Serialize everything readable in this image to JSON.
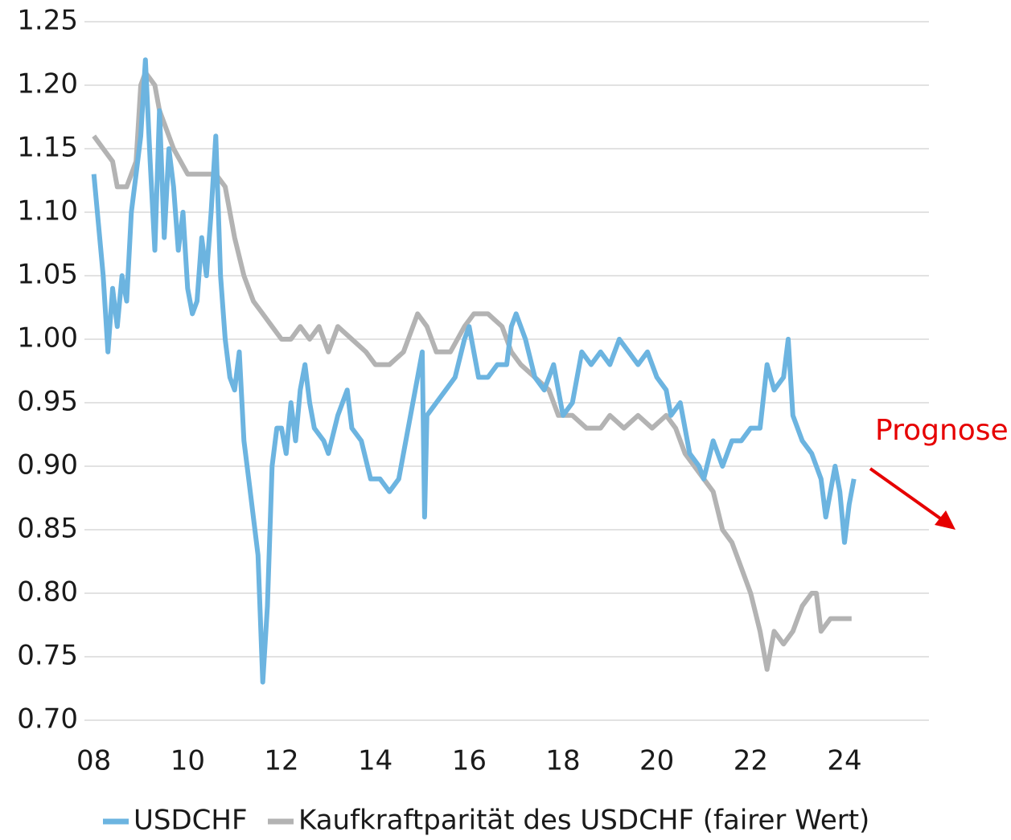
{
  "chart_data": {
    "type": "line",
    "xlim": [
      2007.8,
      2025.8
    ],
    "xticks": [
      {
        "value": 2008,
        "label": "08"
      },
      {
        "value": 2010,
        "label": "10"
      },
      {
        "value": 2012,
        "label": "12"
      },
      {
        "value": 2014,
        "label": "14"
      },
      {
        "value": 2016,
        "label": "16"
      },
      {
        "value": 2018,
        "label": "18"
      },
      {
        "value": 2020,
        "label": "20"
      },
      {
        "value": 2022,
        "label": "22"
      },
      {
        "value": 2024,
        "label": "24"
      }
    ],
    "ylim": [
      0.7,
      1.25
    ],
    "yticks": [
      {
        "value": 0.7,
        "label": "0.70"
      },
      {
        "value": 0.75,
        "label": "0.75"
      },
      {
        "value": 0.8,
        "label": "0.80"
      },
      {
        "value": 0.85,
        "label": "0.85"
      },
      {
        "value": 0.9,
        "label": "0.90"
      },
      {
        "value": 0.95,
        "label": "0.95"
      },
      {
        "value": 1.0,
        "label": "1.00"
      },
      {
        "value": 1.05,
        "label": "1.05"
      },
      {
        "value": 1.1,
        "label": "1.10"
      },
      {
        "value": 1.15,
        "label": "1.15"
      },
      {
        "value": 1.2,
        "label": "1.20"
      },
      {
        "value": 1.25,
        "label": "1.25"
      }
    ],
    "grid": true,
    "legend": "bottom",
    "annotation": "Prognose",
    "annotation_color": "#e60000",
    "series": [
      {
        "name": "USDCHF",
        "color": "#6cb4e0",
        "x": [
          2008.0,
          2008.1,
          2008.2,
          2008.3,
          2008.4,
          2008.5,
          2008.6,
          2008.7,
          2008.8,
          2008.9,
          2009.0,
          2009.1,
          2009.2,
          2009.3,
          2009.4,
          2009.5,
          2009.6,
          2009.7,
          2009.8,
          2009.9,
          2010.0,
          2010.1,
          2010.2,
          2010.3,
          2010.4,
          2010.5,
          2010.6,
          2010.7,
          2010.8,
          2010.9,
          2011.0,
          2011.1,
          2011.2,
          2011.3,
          2011.4,
          2011.5,
          2011.6,
          2011.7,
          2011.8,
          2011.9,
          2012.0,
          2012.1,
          2012.2,
          2012.3,
          2012.4,
          2012.5,
          2012.6,
          2012.7,
          2012.9,
          2013.0,
          2013.2,
          2013.4,
          2013.5,
          2013.7,
          2013.9,
          2014.1,
          2014.3,
          2014.5,
          2014.7,
          2014.9,
          2015.0,
          2015.05,
          2015.1,
          2015.3,
          2015.5,
          2015.7,
          2015.9,
          2016.0,
          2016.2,
          2016.4,
          2016.6,
          2016.8,
          2016.9,
          2017.0,
          2017.2,
          2017.4,
          2017.6,
          2017.8,
          2018.0,
          2018.2,
          2018.4,
          2018.6,
          2018.8,
          2019.0,
          2019.2,
          2019.4,
          2019.6,
          2019.8,
          2020.0,
          2020.2,
          2020.3,
          2020.5,
          2020.7,
          2020.9,
          2021.0,
          2021.2,
          2021.4,
          2021.6,
          2021.8,
          2022.0,
          2022.2,
          2022.35,
          2022.5,
          2022.7,
          2022.8,
          2022.9,
          2023.1,
          2023.3,
          2023.5,
          2023.6,
          2023.8,
          2023.9,
          2024.0,
          2024.1,
          2024.2
        ],
        "values": [
          1.13,
          1.09,
          1.05,
          0.99,
          1.04,
          1.01,
          1.05,
          1.03,
          1.1,
          1.13,
          1.16,
          1.22,
          1.14,
          1.07,
          1.18,
          1.08,
          1.15,
          1.12,
          1.07,
          1.1,
          1.04,
          1.02,
          1.03,
          1.08,
          1.05,
          1.1,
          1.16,
          1.05,
          1.0,
          0.97,
          0.96,
          0.99,
          0.92,
          0.89,
          0.86,
          0.83,
          0.73,
          0.79,
          0.9,
          0.93,
          0.93,
          0.91,
          0.95,
          0.92,
          0.96,
          0.98,
          0.95,
          0.93,
          0.92,
          0.91,
          0.94,
          0.96,
          0.93,
          0.92,
          0.89,
          0.89,
          0.88,
          0.89,
          0.93,
          0.97,
          0.99,
          0.86,
          0.94,
          0.95,
          0.96,
          0.97,
          1.0,
          1.01,
          0.97,
          0.97,
          0.98,
          0.98,
          1.01,
          1.02,
          1.0,
          0.97,
          0.96,
          0.98,
          0.94,
          0.95,
          0.99,
          0.98,
          0.99,
          0.98,
          1.0,
          0.99,
          0.98,
          0.99,
          0.97,
          0.96,
          0.94,
          0.95,
          0.91,
          0.9,
          0.89,
          0.92,
          0.9,
          0.92,
          0.92,
          0.93,
          0.93,
          0.98,
          0.96,
          0.97,
          1.0,
          0.94,
          0.92,
          0.91,
          0.89,
          0.86,
          0.9,
          0.88,
          0.84,
          0.87,
          0.89
        ]
      },
      {
        "name": "Kaufkraftparität des USDCHF (fairer Wert)",
        "color": "#b3b3b3",
        "x": [
          2008.0,
          2008.2,
          2008.4,
          2008.5,
          2008.7,
          2008.9,
          2009.0,
          2009.1,
          2009.3,
          2009.4,
          2009.5,
          2009.7,
          2010.0,
          2010.3,
          2010.6,
          2010.8,
          2011.0,
          2011.2,
          2011.4,
          2011.6,
          2011.8,
          2012.0,
          2012.2,
          2012.4,
          2012.6,
          2012.8,
          2013.0,
          2013.2,
          2013.5,
          2013.8,
          2014.0,
          2014.3,
          2014.6,
          2014.9,
          2015.1,
          2015.3,
          2015.6,
          2015.9,
          2016.1,
          2016.4,
          2016.7,
          2016.9,
          2017.1,
          2017.4,
          2017.7,
          2017.9,
          2018.2,
          2018.5,
          2018.8,
          2019.0,
          2019.3,
          2019.6,
          2019.9,
          2020.2,
          2020.4,
          2020.6,
          2020.8,
          2021.0,
          2021.2,
          2021.4,
          2021.6,
          2021.8,
          2022.0,
          2022.2,
          2022.35,
          2022.5,
          2022.7,
          2022.9,
          2023.1,
          2023.3,
          2023.4,
          2023.5,
          2023.7,
          2024.0,
          2024.15
        ],
        "values": [
          1.16,
          1.15,
          1.14,
          1.12,
          1.12,
          1.14,
          1.2,
          1.21,
          1.2,
          1.18,
          1.17,
          1.15,
          1.13,
          1.13,
          1.13,
          1.12,
          1.08,
          1.05,
          1.03,
          1.02,
          1.01,
          1.0,
          1.0,
          1.01,
          1.0,
          1.01,
          0.99,
          1.01,
          1.0,
          0.99,
          0.98,
          0.98,
          0.99,
          1.02,
          1.01,
          0.99,
          0.99,
          1.01,
          1.02,
          1.02,
          1.01,
          0.99,
          0.98,
          0.97,
          0.96,
          0.94,
          0.94,
          0.93,
          0.93,
          0.94,
          0.93,
          0.94,
          0.93,
          0.94,
          0.93,
          0.91,
          0.9,
          0.89,
          0.88,
          0.85,
          0.84,
          0.82,
          0.8,
          0.77,
          0.74,
          0.77,
          0.76,
          0.77,
          0.79,
          0.8,
          0.8,
          0.77,
          0.78,
          0.78,
          0.78
        ]
      }
    ]
  }
}
